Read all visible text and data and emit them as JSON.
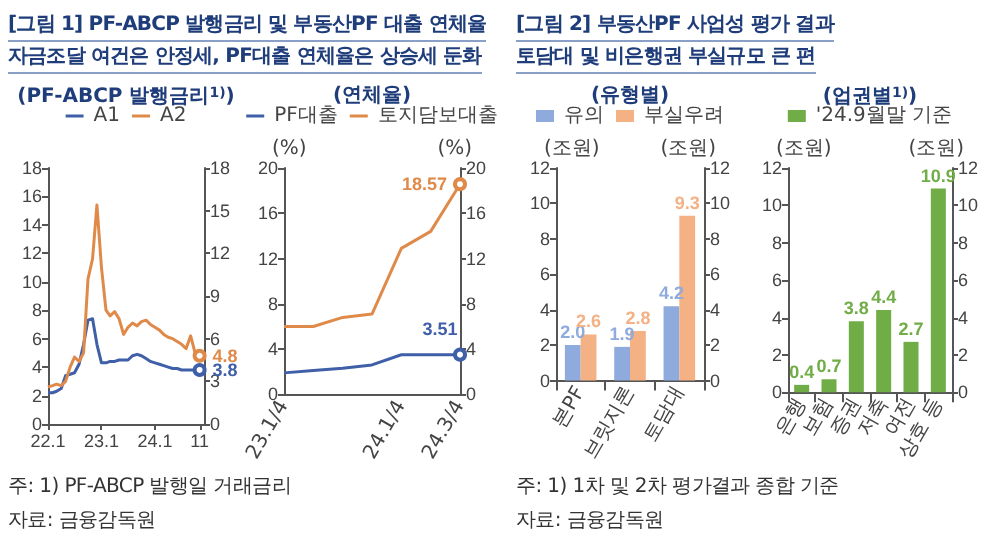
{
  "chart_data": [
    {
      "type": "line",
      "title": "(PF-ABCP 발행금리$^{1)}$)",
      "annotations": [
        "[그림 1] PF-ABCP 발행금리 및 부동산PF 대출 연체율",
        "자금조달 여건은 안정세, PF대출 연체율은 상승세 둔화",
        "주: 1) PF-ABCP 발행일 거래금리",
        "자료: 금융감독원"
      ],
      "x": [
        "2022-01",
        "2022-02",
        "2022-03",
        "2022-04",
        "2022-05",
        "2022-06",
        "2022-07",
        "2022-08",
        "2022-09",
        "2022-10",
        "2022-11",
        "2022-12",
        "2023-01",
        "2023-02",
        "2023-03",
        "2023-04",
        "2023-05",
        "2023-06",
        "2023-07",
        "2023-08",
        "2023-09",
        "2023-10",
        "2023-11",
        "2023-12",
        "2024-01",
        "2024-02",
        "2024-03",
        "2024-04",
        "2024-05",
        "2024-06",
        "2024-07",
        "2024-08",
        "2024-09",
        "2024-10",
        "2024-11"
      ],
      "series": [
        {
          "name": "A1",
          "color": "#3f5fa8",
          "values": [
            2.2,
            2.2,
            2.3,
            2.5,
            3.4,
            3.5,
            3.6,
            4.2,
            5.6,
            7.3,
            7.4,
            5.6,
            4.3,
            4.3,
            4.4,
            4.4,
            4.5,
            4.5,
            4.5,
            4.8,
            4.9,
            4.8,
            4.6,
            4.4,
            4.3,
            4.2,
            4.1,
            4.0,
            3.9,
            3.9,
            3.8,
            3.8,
            3.8,
            3.8,
            3.8
          ],
          "value_labels": [
            null,
            null,
            null,
            null,
            null,
            null,
            null,
            null,
            null,
            null,
            null,
            null,
            null,
            null,
            null,
            null,
            null,
            null,
            null,
            null,
            null,
            null,
            null,
            null,
            null,
            null,
            null,
            null,
            null,
            null,
            null,
            null,
            null,
            null,
            "3.8"
          ]
        },
        {
          "name": "A2",
          "color": "#e08a4a",
          "values": [
            2.6,
            2.7,
            2.8,
            2.7,
            3.0,
            4.0,
            4.7,
            4.4,
            5.0,
            10.2,
            11.6,
            15.4,
            11.0,
            8.0,
            7.6,
            7.9,
            7.4,
            6.3,
            6.8,
            7.1,
            6.9,
            7.2,
            7.3,
            7.0,
            6.8,
            6.6,
            6.3,
            6.1,
            6.0,
            5.8,
            5.6,
            5.3,
            6.2,
            5.0,
            4.8
          ],
          "value_labels": [
            null,
            null,
            null,
            null,
            null,
            null,
            null,
            null,
            null,
            null,
            null,
            null,
            null,
            null,
            null,
            null,
            null,
            null,
            null,
            null,
            null,
            null,
            null,
            null,
            null,
            null,
            null,
            null,
            null,
            null,
            null,
            null,
            null,
            null,
            "4.8"
          ]
        }
      ],
      "xlim": [
        "2022-01",
        "2024-12"
      ],
      "xticks": [
        {
          "value": "2022-01",
          "label": "22.1"
        },
        {
          "value": "2023-01",
          "label": "23.1"
        },
        {
          "value": "2024-01",
          "label": "24.1"
        },
        {
          "value": "2024-11",
          "label": "11"
        }
      ],
      "ylim": [
        0,
        18
      ],
      "yticks": [
        0,
        2,
        4,
        6,
        8,
        10,
        12,
        14,
        16,
        18
      ],
      "y2lim": [
        0,
        18
      ],
      "y2ticks": [
        0,
        3,
        6,
        9,
        12,
        15,
        18
      ],
      "grid": false,
      "legend": "top"
    },
    {
      "type": "line",
      "title": "(연체율)",
      "ylabel": "(%)",
      "y2label": "(%)",
      "categories": [
        "23.1/4",
        null,
        null,
        null,
        "24.1/4",
        null,
        "24.3/4"
      ],
      "series": [
        {
          "name": "PF대출",
          "color": "#3f5fa8",
          "values": [
            1.9,
            2.1,
            2.3,
            2.6,
            3.5,
            3.5,
            3.51
          ],
          "value_labels": [
            null,
            null,
            null,
            null,
            null,
            null,
            "3.51"
          ]
        },
        {
          "name": "토지담보대출",
          "color": "#e08a4a",
          "values": [
            6.0,
            6.0,
            6.8,
            7.1,
            12.9,
            14.4,
            18.57
          ],
          "value_labels": [
            null,
            null,
            null,
            null,
            null,
            null,
            "18.57"
          ]
        }
      ],
      "ylim": [
        0,
        20
      ],
      "yticks": [
        0,
        4,
        8,
        12,
        16,
        20
      ],
      "y2lim": [
        0,
        20
      ],
      "y2ticks": [
        0,
        4,
        8,
        12,
        16,
        20
      ],
      "grid": false,
      "legend": "top"
    },
    {
      "type": "bar",
      "title": "(유형별)",
      "ylabel": "(조원)",
      "y2label": "(조원)",
      "annotations": [
        "[그림 2] 부동산PF 사업성 평가 결과",
        "토담대 및 비은행권 부실규모 큰 편",
        "주: 1) 1차 및 2차 평가결과 종합 기준",
        "자료: 금융감독원"
      ],
      "categories": [
        "본PF",
        "브릿지론",
        "토담대"
      ],
      "series": [
        {
          "name": "유의",
          "color": "#8faadc",
          "values": [
            2.0,
            1.9,
            4.2
          ],
          "value_labels": [
            "2.0",
            "1.9",
            "4.2"
          ]
        },
        {
          "name": "부실우려",
          "color": "#f4b183",
          "values": [
            2.6,
            2.8,
            9.3
          ],
          "value_labels": [
            "2.6",
            "2.8",
            "9.3"
          ]
        }
      ],
      "ylim": [
        0,
        12
      ],
      "yticks": [
        0,
        2,
        4,
        6,
        8,
        10,
        12
      ],
      "y2lim": [
        0,
        12
      ],
      "y2ticks": [
        0,
        2,
        4,
        6,
        8,
        10,
        12
      ],
      "grid": false,
      "legend": "top"
    },
    {
      "type": "bar",
      "title": "(업권별$^{1)}$)",
      "ylabel": "(조원)",
      "y2label": "(조원)",
      "categories": [
        "은행",
        "보험",
        "증권",
        "저축",
        "여전",
        "상호 등"
      ],
      "series": [
        {
          "name": "'24.9월말 기준",
          "color": "#70ad47",
          "values": [
            0.4,
            0.7,
            3.8,
            4.4,
            2.7,
            10.9
          ]
        }
      ],
      "ylim": [
        0,
        12
      ],
      "yticks": [
        0,
        2,
        4,
        6,
        8,
        10,
        12
      ],
      "y2lim": [
        0,
        12
      ],
      "y2ticks": [
        0,
        2,
        4,
        6,
        8,
        10,
        12
      ],
      "grid": false,
      "legend": "top",
      "data_labels": true
    }
  ]
}
